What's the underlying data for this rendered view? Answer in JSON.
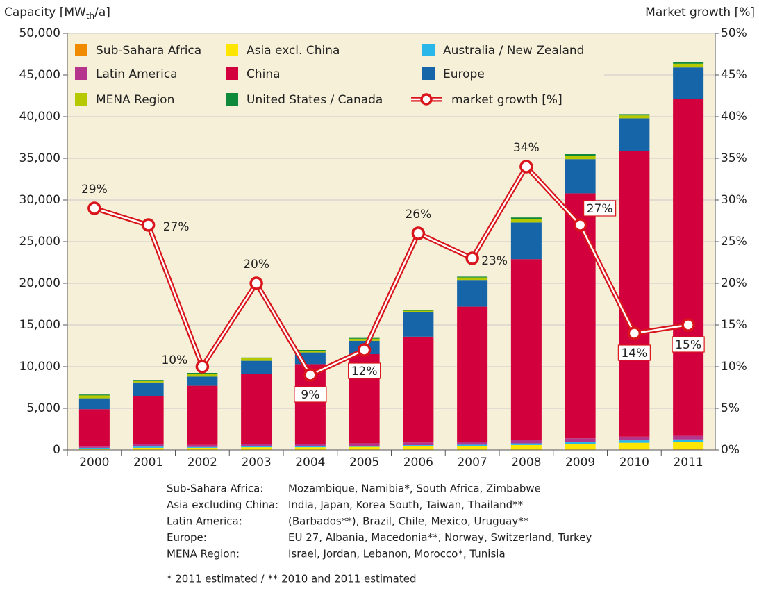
{
  "chart_data": {
    "type": "bar",
    "stacked": true,
    "y_label": [
      "Capacity [MW",
      "th",
      "/a]"
    ],
    "y2_label": "Market growth [%]",
    "categories": [
      "2000",
      "2001",
      "2002",
      "2003",
      "2004",
      "2005",
      "2006",
      "2007",
      "2008",
      "2009",
      "2010",
      "2011"
    ],
    "series": [
      {
        "name": "Sub-Sahara Africa",
        "color": "#f08a00",
        "values": [
          10,
          10,
          10,
          20,
          20,
          20,
          30,
          30,
          40,
          50,
          60,
          70
        ]
      },
      {
        "name": "Asia excl. China",
        "color": "#ffe600",
        "values": [
          150,
          250,
          250,
          300,
          300,
          350,
          400,
          450,
          550,
          650,
          800,
          900
        ]
      },
      {
        "name": "Australia / New Zealand",
        "color": "#29b6e8",
        "values": [
          100,
          150,
          100,
          100,
          100,
          100,
          150,
          150,
          200,
          300,
          300,
          300
        ]
      },
      {
        "name": "Latin America",
        "color": "#b5358c",
        "values": [
          140,
          290,
          240,
          280,
          280,
          330,
          320,
          370,
          410,
          400,
          440,
          430
        ]
      },
      {
        "name": "China",
        "color": "#d2003c",
        "values": [
          4500,
          5800,
          7100,
          8400,
          9600,
          10700,
          12700,
          16200,
          21700,
          29400,
          34300,
          40400
        ]
      },
      {
        "name": "Europe",
        "color": "#1565a8",
        "values": [
          1300,
          1600,
          1100,
          1600,
          1400,
          1600,
          2900,
          3200,
          4400,
          4100,
          3900,
          3800
        ]
      },
      {
        "name": "MENA Region",
        "color": "#b5c800",
        "values": [
          350,
          200,
          350,
          300,
          200,
          250,
          200,
          300,
          450,
          400,
          350,
          450
        ]
      },
      {
        "name": "United States / Canada",
        "color": "#0e8a3a",
        "values": [
          100,
          100,
          100,
          100,
          100,
          100,
          100,
          100,
          150,
          200,
          150,
          150
        ]
      },
      {
        "name": "market growth [%]",
        "color": "#d9161c",
        "type": "line",
        "axis": "y2",
        "values": [
          29,
          27,
          10,
          20,
          9,
          12,
          26,
          23,
          34,
          27,
          14,
          15
        ],
        "value_labels": [
          "29%",
          "27%",
          "10%",
          "20%",
          "9%",
          "12%",
          "26%",
          "23%",
          "34%",
          "27%",
          "14%",
          "15%"
        ]
      }
    ],
    "ylim": [
      0,
      50000
    ],
    "yticks": [
      0,
      {
        "value": 5000,
        "label": "5,000"
      },
      {
        "value": 10000,
        "label": "10,000"
      },
      {
        "value": 15000,
        "label": "15,000"
      },
      {
        "value": 20000,
        "label": "20,000"
      },
      {
        "value": 25000,
        "label": "25,000"
      },
      {
        "value": 30000,
        "label": "30,000"
      },
      {
        "value": 35000,
        "label": "35,000"
      },
      {
        "value": 40000,
        "label": "40,000"
      },
      {
        "value": 45000,
        "label": "45,000"
      },
      {
        "value": 50000,
        "label": "50,000"
      }
    ],
    "y2lim": [
      0,
      50
    ],
    "y2ticks": [
      {
        "value": 0,
        "label": "0%"
      },
      {
        "value": 5,
        "label": "5%"
      },
      {
        "value": 10,
        "label": "10%"
      },
      {
        "value": 15,
        "label": "15%"
      },
      {
        "value": 20,
        "label": "20%"
      },
      {
        "value": 25,
        "label": "25%"
      },
      {
        "value": 30,
        "label": "30%"
      },
      {
        "value": 35,
        "label": "35%"
      },
      {
        "value": 40,
        "label": "40%"
      },
      {
        "value": 45,
        "label": "45%"
      },
      {
        "value": 50,
        "label": "50%"
      }
    ],
    "grid": true,
    "legend": "top-left",
    "notes": [
      {
        "region": "Sub-Sahara Africa:",
        "countries": "Mozambique, Namibia*, South Africa, Zimbabwe"
      },
      {
        "region": "Asia excluding China:",
        "countries": "India, Japan, Korea South, Taiwan, Thailand**"
      },
      {
        "region": "Latin America:",
        "countries": "(Barbados**), Brazil, Chile, Mexico, Uruguay**"
      },
      {
        "region": "Europe:",
        "countries": "EU 27, Albania, Macedonia**, Norway, Switzerland, Turkey"
      },
      {
        "region": "MENA Region:",
        "countries": "Israel, Jordan, Lebanon, Morocco*, Tunisia"
      }
    ],
    "footnote": "* 2011 estimated / ** 2010 and 2011 estimated"
  }
}
